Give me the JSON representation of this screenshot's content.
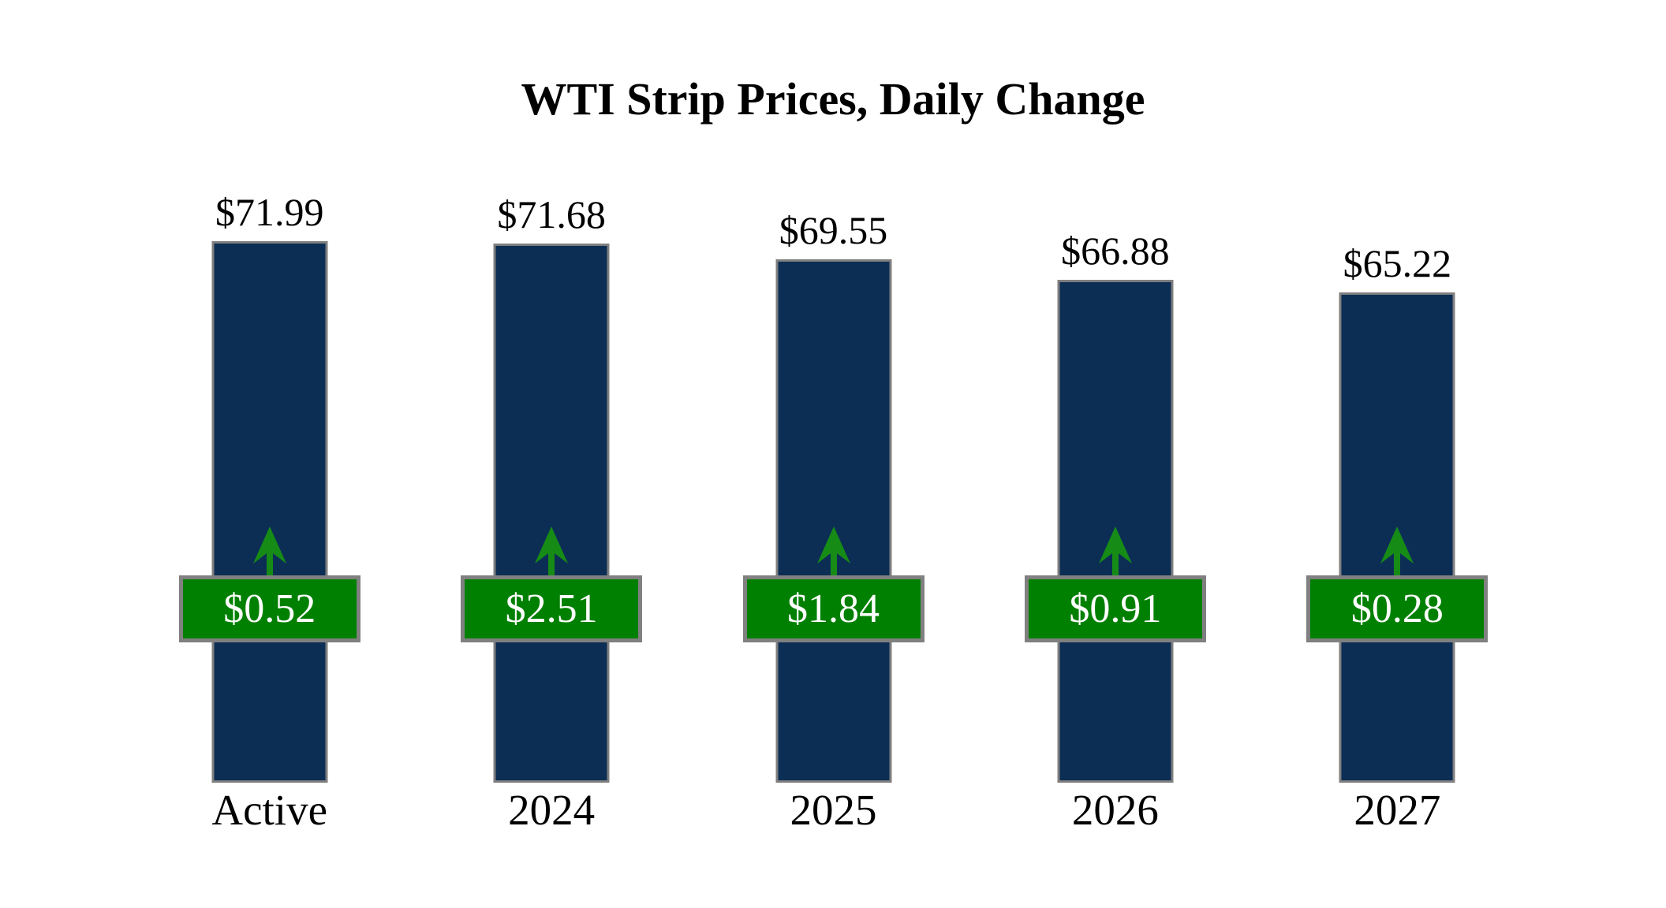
{
  "title": "WTI Strip Prices, Daily Change",
  "chart_data": {
    "type": "bar",
    "title": "WTI Strip Prices, Daily Change",
    "categories": [
      "Active",
      "2024",
      "2025",
      "2026",
      "2027"
    ],
    "series": [
      {
        "name": "WTI Strip Price",
        "values": [
          71.99,
          71.68,
          69.55,
          66.88,
          65.22
        ],
        "labels": [
          "$71.99",
          "$71.68",
          "$69.55",
          "$66.88",
          "$65.22"
        ]
      },
      {
        "name": "Daily Change",
        "values": [
          0.52,
          2.51,
          1.84,
          0.91,
          0.28
        ],
        "labels": [
          "$0.52",
          "$2.51",
          "$1.84",
          "$0.91",
          "$0.28"
        ],
        "direction": "up"
      }
    ],
    "xlabel": "",
    "ylabel": "",
    "ylim": [
      0,
      72
    ],
    "axes_visible": false,
    "grid": false,
    "legend_position": "none",
    "colors": {
      "background": "#ffffff",
      "bar_fill": "#0c2e55",
      "bar_border": "#7f7f7f",
      "badge_fill": "#008000",
      "badge_border": "#808080",
      "badge_text": "#ffffff",
      "arrow": "#168c16",
      "value_text": "#000000",
      "category_text": "#000000",
      "title_text": "#000000"
    }
  }
}
